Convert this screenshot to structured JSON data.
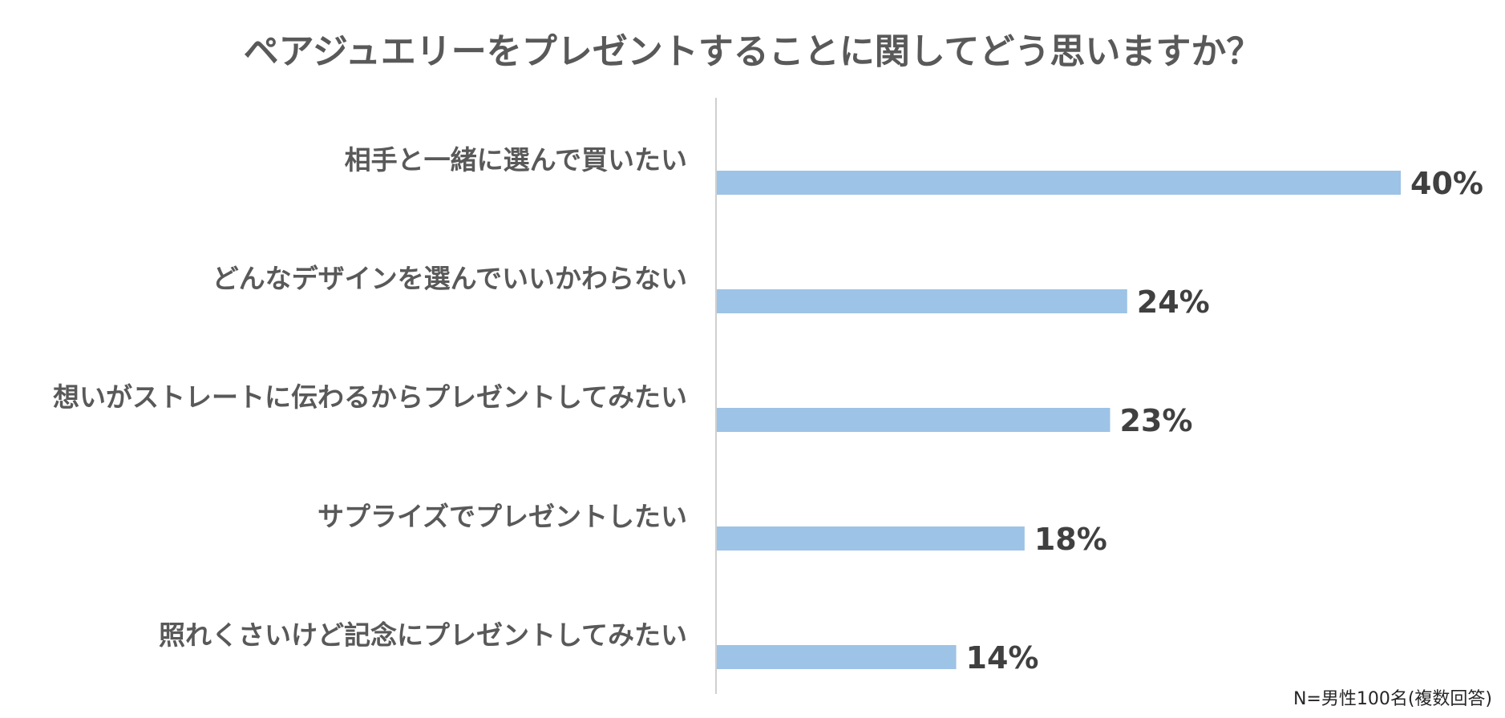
{
  "chart_data": {
    "type": "bar",
    "orientation": "horizontal",
    "title": "ペアジュエリーをプレゼントすることに関してどう思いますか？",
    "categories": [
      "相手と一緒に選んで買いたい",
      "どんなデザインを選んでいいかわらない",
      "想いがストレートに伝わるからプレゼントしてみたい",
      "サプライズでプレゼントしたい",
      "照れくさいけど記念にプレゼントしてみたい"
    ],
    "values": [
      40,
      24,
      23,
      18,
      14
    ],
    "value_labels": [
      "40%",
      "24%",
      "23%",
      "18%",
      "14%"
    ],
    "unit": "%",
    "xlim": [
      0,
      40
    ],
    "grid": false,
    "legend": "none",
    "bar_color": "#9DC3E6",
    "axis_color": "#BFBFBF",
    "label_color": "#595959",
    "value_label_color": "#404040"
  },
  "footnote": "N=男性100名(複数回答)"
}
